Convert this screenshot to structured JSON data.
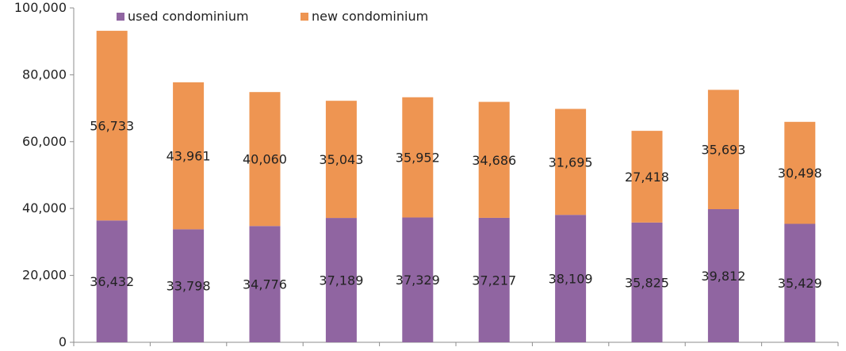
{
  "chart_data": {
    "type": "bar",
    "stacked": true,
    "categories": [
      "",
      "",
      "",
      "",
      "",
      "",
      "",
      "",
      "",
      ""
    ],
    "series": [
      {
        "name": "used condominium",
        "color": "#9065a1",
        "values": [
          36432,
          33798,
          34776,
          37189,
          37329,
          37217,
          38109,
          35825,
          39812,
          35429
        ],
        "labels": [
          "36,432",
          "33,798",
          "34,776",
          "37,189",
          "37,329",
          "37,217",
          "38,109",
          "35,825",
          "39,812",
          "35,429"
        ]
      },
      {
        "name": "new condominium",
        "color": "#ee9552",
        "values": [
          56733,
          43961,
          40060,
          35043,
          35952,
          34686,
          31695,
          27418,
          35693,
          30498
        ],
        "labels": [
          "56,733",
          "43,961",
          "40,060",
          "35,043",
          "35,952",
          "34,686",
          "31,695",
          "27,418",
          "35,693",
          "30,498"
        ]
      }
    ],
    "ylim": [
      0,
      100000
    ],
    "yticks": [
      0,
      20000,
      40000,
      60000,
      80000,
      100000
    ],
    "ytick_labels": [
      "0",
      "20,000",
      "40,000",
      "60,000",
      "80,000",
      "100,000"
    ],
    "legend_position": "top",
    "grid": false
  }
}
